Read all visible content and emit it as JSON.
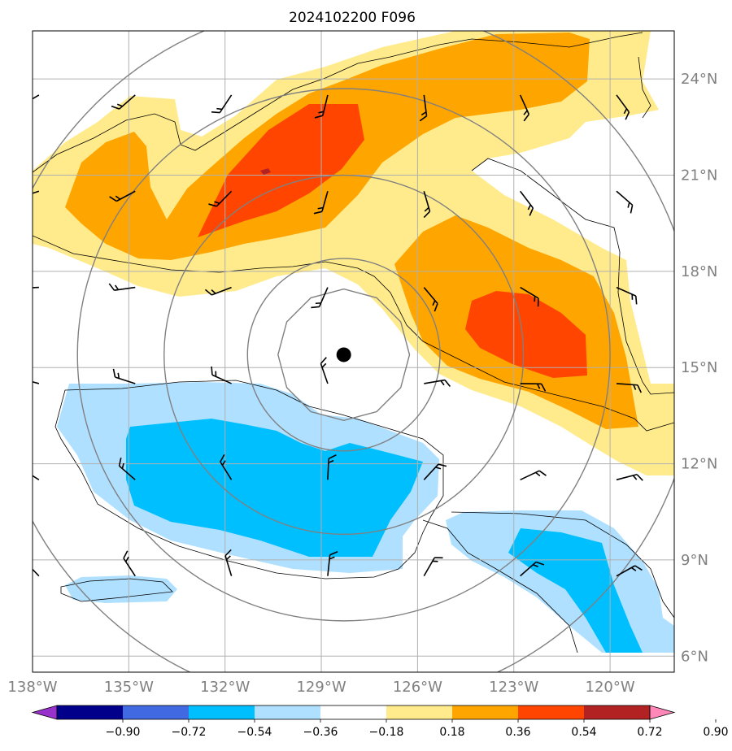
{
  "title": "2024102200 F096",
  "map": {
    "lon_range": [
      -138,
      -118
    ],
    "lat_range": [
      5.5,
      25.5
    ],
    "lon_ticks": [
      {
        "value": -138,
        "label": "138°W"
      },
      {
        "value": -135,
        "label": "135°W"
      },
      {
        "value": -132,
        "label": "132°W"
      },
      {
        "value": -129,
        "label": "129°W"
      },
      {
        "value": -126,
        "label": "126°W"
      },
      {
        "value": -123,
        "label": "123°W"
      },
      {
        "value": -120,
        "label": "120°W"
      }
    ],
    "lat_ticks": [
      {
        "value": 24,
        "label": "24°N"
      },
      {
        "value": 21,
        "label": "21°N"
      },
      {
        "value": 18,
        "label": "18°N"
      },
      {
        "value": 15,
        "label": "15°N"
      },
      {
        "value": 12,
        "label": "12°N"
      },
      {
        "value": 9,
        "label": "9°N"
      },
      {
        "value": 6,
        "label": "6°N"
      }
    ],
    "storm_center": {
      "lon": -128.3,
      "lat": 15.4
    },
    "range_rings": [
      3,
      5.6,
      8.3,
      11
    ],
    "grid": true
  },
  "colorbar": {
    "levels": [
      "−0.90",
      "−0.72",
      "−0.54",
      "−0.36",
      "−0.18",
      "0.18",
      "0.36",
      "0.54",
      "0.72",
      "0.90"
    ],
    "colors": [
      "#9932cc",
      "#00008b",
      "#4169e1",
      "#00bfff",
      "#b0e0ff",
      "#ffffff",
      "#ffeb8c",
      "#ffa500",
      "#ff4500",
      "#b22222",
      "#ff88b8"
    ],
    "extend": "both"
  },
  "colors": {
    "pos_light": "#ffeb8c",
    "pos_mid": "#ffa500",
    "pos_high": "#ff4500",
    "pos_max": "#b22222",
    "neg_light": "#b0e0ff",
    "neg_mid": "#00bfff",
    "grid": "#b0b0b0",
    "ring": "#808080"
  }
}
